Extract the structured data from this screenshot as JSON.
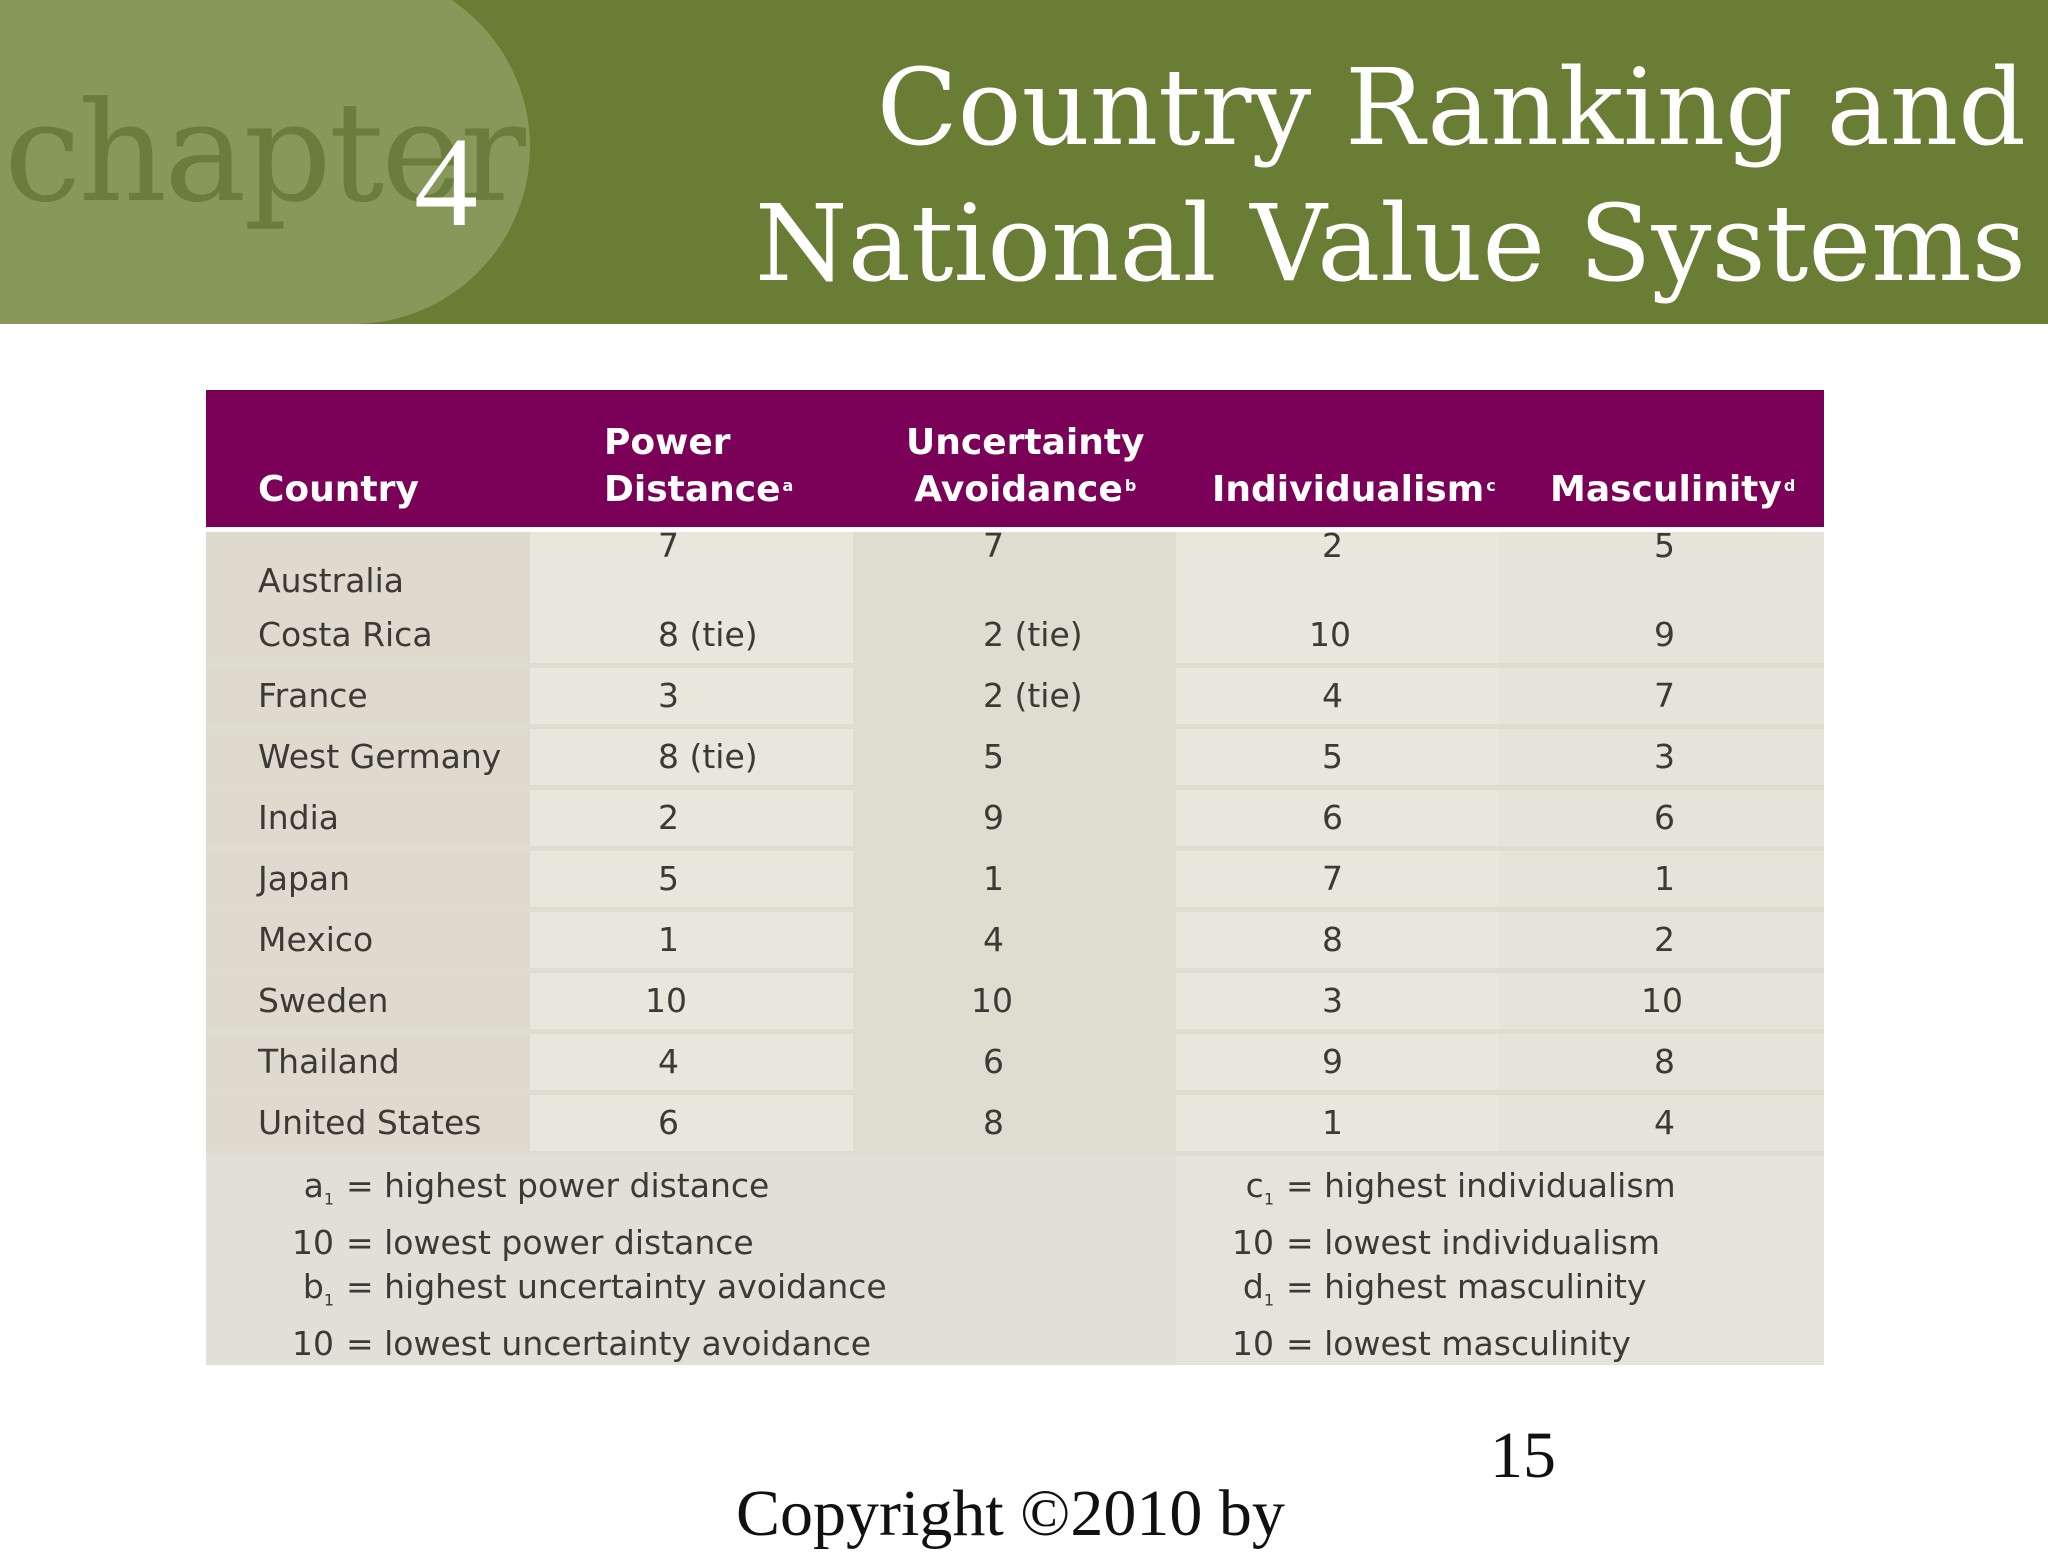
{
  "header": {
    "chapter_word": "chapter",
    "chapter_number": "4",
    "title_line1": "Country Ranking and",
    "title_line2": "National Value Systems"
  },
  "table": {
    "headers": {
      "country": "Country",
      "power_line1": "Power",
      "power_line2": "Distance",
      "power_sup": "a",
      "unc_line1": "Uncertainty",
      "unc_line2": "Avoidance",
      "unc_sup": "b",
      "individualism": "Individualism",
      "individualism_sup": "c",
      "masculinity": "Masculinity",
      "masculinity_sup": "d"
    },
    "rows": [
      {
        "country": "Australia",
        "power": "7",
        "uncertainty": "7",
        "individualism": "2",
        "masculinity": "5"
      },
      {
        "country": "Costa Rica",
        "power": "8 (tie)",
        "uncertainty": "2 (tie)",
        "individualism": "10",
        "masculinity": "9"
      },
      {
        "country": "France",
        "power": "3",
        "uncertainty": "2 (tie)",
        "individualism": "4",
        "masculinity": "7"
      },
      {
        "country": "West Germany",
        "power": "8 (tie)",
        "uncertainty": "5",
        "individualism": "5",
        "masculinity": "3"
      },
      {
        "country": "India",
        "power": "2",
        "uncertainty": "9",
        "individualism": "6",
        "masculinity": "6"
      },
      {
        "country": "Japan",
        "power": "5",
        "uncertainty": "1",
        "individualism": "7",
        "masculinity": "1"
      },
      {
        "country": "Mexico",
        "power": "1",
        "uncertainty": "4",
        "individualism": "8",
        "masculinity": "2"
      },
      {
        "country": "Sweden",
        "power": "10",
        "uncertainty": "10",
        "individualism": "3",
        "masculinity": "10"
      },
      {
        "country": "Thailand",
        "power": "4",
        "uncertainty": "6",
        "individualism": "9",
        "masculinity": "8"
      },
      {
        "country": "United States",
        "power": "6",
        "uncertainty": "8",
        "individualism": "1",
        "masculinity": "4"
      }
    ],
    "notes_left": [
      {
        "key": "a",
        "sub": "1",
        "text": "= highest power distance"
      },
      {
        "key": "10",
        "sub": "",
        "text": "= lowest power distance"
      },
      {
        "key": "b",
        "sub": "1",
        "text": "= highest uncertainty avoidance"
      },
      {
        "key": "10",
        "sub": "",
        "text": "= lowest uncertainty avoidance"
      }
    ],
    "notes_right": [
      {
        "key": "c",
        "sub": "1",
        "text": "= highest individualism"
      },
      {
        "key": "10",
        "sub": "",
        "text": "= lowest individualism"
      },
      {
        "key": "d",
        "sub": "1",
        "text": "= highest masculinity"
      },
      {
        "key": "10",
        "sub": "",
        "text": "= lowest masculinity"
      }
    ]
  },
  "footer": {
    "slide_number": "15",
    "copyright": "Copyright ©2010 by"
  },
  "colors": {
    "header_green": "#697d34",
    "chapter_blob": "#87985a",
    "table_header": "#7b0058",
    "table_body": "#dfdcd0"
  }
}
